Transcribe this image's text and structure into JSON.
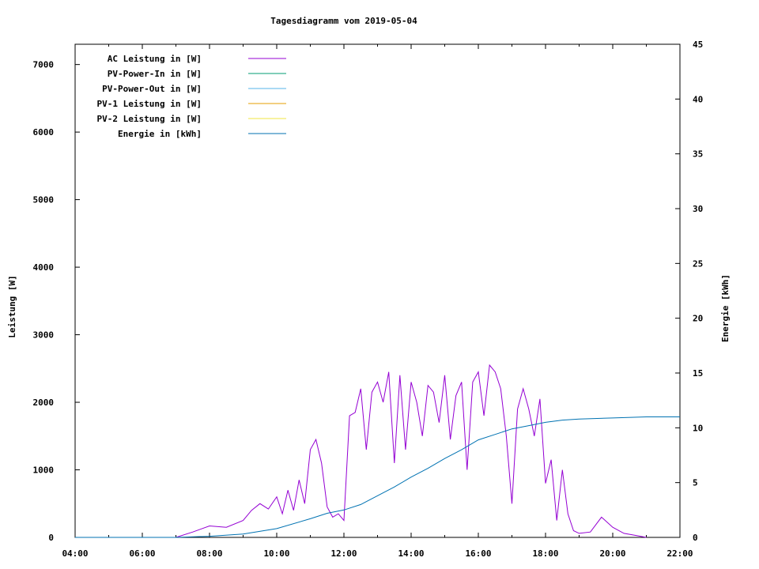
{
  "chart_data": {
    "type": "line",
    "title": "Tagesdiagramm vom 2019-05-04",
    "xlabel": "",
    "ylabel": "Leistung [W]",
    "y2label": "Energie [kWh]",
    "xlim": [
      "04:00",
      "22:00"
    ],
    "xticks": [
      "04:00",
      "06:00",
      "08:00",
      "10:00",
      "12:00",
      "14:00",
      "16:00",
      "18:00",
      "20:00",
      "22:00"
    ],
    "ylim": [
      0,
      7300
    ],
    "yticks": [
      "0",
      "1000",
      "2000",
      "3000",
      "4000",
      "5000",
      "6000",
      "7000"
    ],
    "y2lim": [
      0,
      45
    ],
    "y2ticks": [
      "0",
      "5",
      "10",
      "15",
      "20",
      "25",
      "30",
      "35",
      "40",
      "45"
    ],
    "grid": false,
    "legend_position": "top-left",
    "series": [
      {
        "name": "AC Leistung in [W]",
        "axis": "left",
        "color": "#9400d3",
        "x": [
          "07:00",
          "07:30",
          "08:00",
          "08:30",
          "09:00",
          "09:15",
          "09:30",
          "09:45",
          "10:00",
          "10:10",
          "10:20",
          "10:30",
          "10:40",
          "10:50",
          "11:00",
          "11:10",
          "11:20",
          "11:30",
          "11:40",
          "11:50",
          "12:00",
          "12:10",
          "12:20",
          "12:30",
          "12:40",
          "12:50",
          "13:00",
          "13:10",
          "13:20",
          "13:30",
          "13:40",
          "13:50",
          "14:00",
          "14:10",
          "14:20",
          "14:30",
          "14:40",
          "14:50",
          "15:00",
          "15:10",
          "15:20",
          "15:30",
          "15:40",
          "15:50",
          "16:00",
          "16:10",
          "16:20",
          "16:30",
          "16:40",
          "16:50",
          "17:00",
          "17:10",
          "17:20",
          "17:30",
          "17:40",
          "17:50",
          "18:00",
          "18:10",
          "18:20",
          "18:30",
          "18:40",
          "18:50",
          "19:00",
          "19:20",
          "19:40",
          "20:00",
          "20:20",
          "20:40",
          "21:00"
        ],
        "y": [
          0,
          80,
          170,
          150,
          250,
          400,
          500,
          420,
          600,
          350,
          700,
          400,
          850,
          500,
          1300,
          1450,
          1100,
          450,
          300,
          350,
          250,
          1800,
          1850,
          2200,
          1300,
          2150,
          2300,
          2000,
          2450,
          1100,
          2400,
          1300,
          2300,
          2000,
          1500,
          2250,
          2150,
          1700,
          2400,
          1450,
          2100,
          2300,
          1000,
          2300,
          2450,
          1800,
          2550,
          2450,
          2200,
          1500,
          500,
          1900,
          2200,
          1900,
          1500,
          2050,
          800,
          1150,
          250,
          1000,
          350,
          100,
          60,
          80,
          300,
          150,
          60,
          30,
          0
        ]
      },
      {
        "name": "PV-Power-In in [W]",
        "axis": "left",
        "color": "#009e73",
        "x": [],
        "y": []
      },
      {
        "name": "PV-Power-Out in [W]",
        "axis": "left",
        "color": "#56b4e9",
        "x": [],
        "y": []
      },
      {
        "name": "PV-1 Leistung in [W]",
        "axis": "left",
        "color": "#e69f00",
        "x": [],
        "y": []
      },
      {
        "name": "PV-2 Leistung in [W]",
        "axis": "left",
        "color": "#f0e442",
        "x": [],
        "y": []
      },
      {
        "name": "Energie in [kWh]",
        "axis": "right",
        "color": "#0072b2",
        "x": [
          "04:00",
          "07:00",
          "08:00",
          "09:00",
          "10:00",
          "11:00",
          "11:30",
          "12:00",
          "12:30",
          "13:00",
          "13:30",
          "14:00",
          "14:30",
          "15:00",
          "15:30",
          "16:00",
          "16:30",
          "17:00",
          "17:30",
          "18:00",
          "18:30",
          "19:00",
          "20:00",
          "21:00",
          "22:00"
        ],
        "y": [
          0,
          0,
          0.1,
          0.3,
          0.8,
          1.7,
          2.2,
          2.5,
          3.0,
          3.8,
          4.6,
          5.5,
          6.3,
          7.2,
          8.0,
          8.9,
          9.4,
          9.9,
          10.2,
          10.5,
          10.7,
          10.8,
          10.9,
          11.0,
          11.0
        ]
      }
    ]
  }
}
